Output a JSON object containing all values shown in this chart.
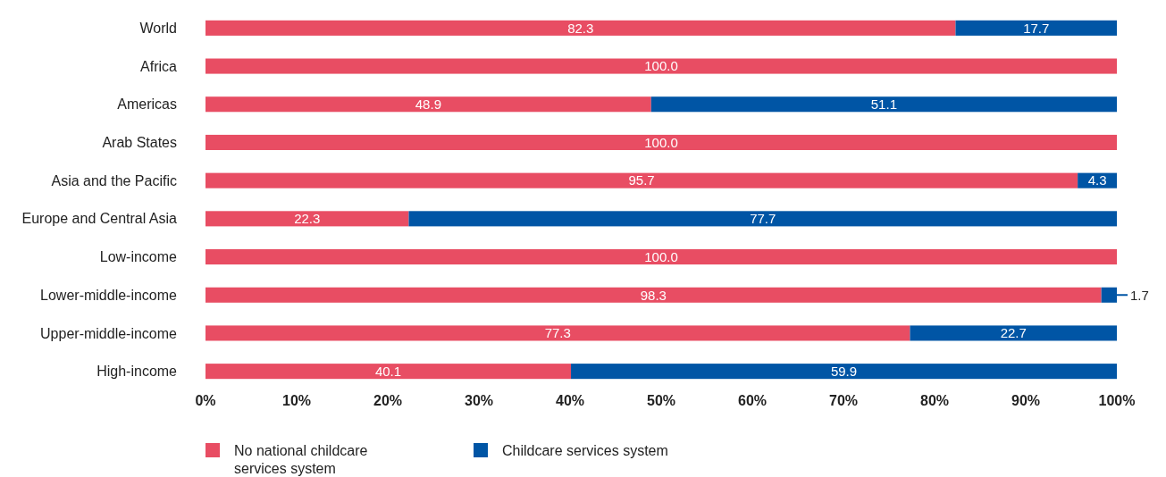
{
  "chart_data": {
    "type": "bar",
    "orientation": "horizontal",
    "stacked": true,
    "categories": [
      "World",
      "Africa",
      "Americas",
      "Arab States",
      "Asia and the Pacific",
      "Europe and Central Asia",
      "Low-income",
      "Lower-middle-income",
      "Upper-middle-income",
      "High-income"
    ],
    "series": [
      {
        "name": "No national childcare services system",
        "color": "#e84d63",
        "values": [
          82.3,
          100,
          48.9,
          100,
          95.7,
          22.3,
          100,
          98.3,
          77.3,
          40.1
        ],
        "value_labels": [
          "82.3",
          "100.0",
          "48.9",
          "100.0",
          "95.7",
          "22.3",
          "100.0",
          "98.3",
          "77.3",
          "40.1"
        ]
      },
      {
        "name": "Childcare services system",
        "color": "#0055a5",
        "values": [
          17.7,
          0,
          51.1,
          0,
          4.3,
          77.7,
          0,
          1.7,
          22.7,
          59.9
        ],
        "value_labels": [
          "17.7",
          null,
          "51.1",
          null,
          "4.3",
          "77.7",
          null,
          "1.7",
          "22.7",
          "59.9"
        ]
      }
    ],
    "xlim": [
      0,
      100
    ],
    "xticks": [
      {
        "value": 0,
        "label": "0%"
      },
      {
        "value": 10,
        "label": "10%"
      },
      {
        "value": 20,
        "label": "20%"
      },
      {
        "value": 30,
        "label": "30%"
      },
      {
        "value": 40,
        "label": "40%"
      },
      {
        "value": 50,
        "label": "50%"
      },
      {
        "value": 60,
        "label": "60%"
      },
      {
        "value": 70,
        "label": "70%"
      },
      {
        "value": 80,
        "label": "80%"
      },
      {
        "value": 90,
        "label": "90%"
      },
      {
        "value": 100,
        "label": "100%"
      }
    ],
    "grid": false,
    "legend": "bottom left"
  }
}
